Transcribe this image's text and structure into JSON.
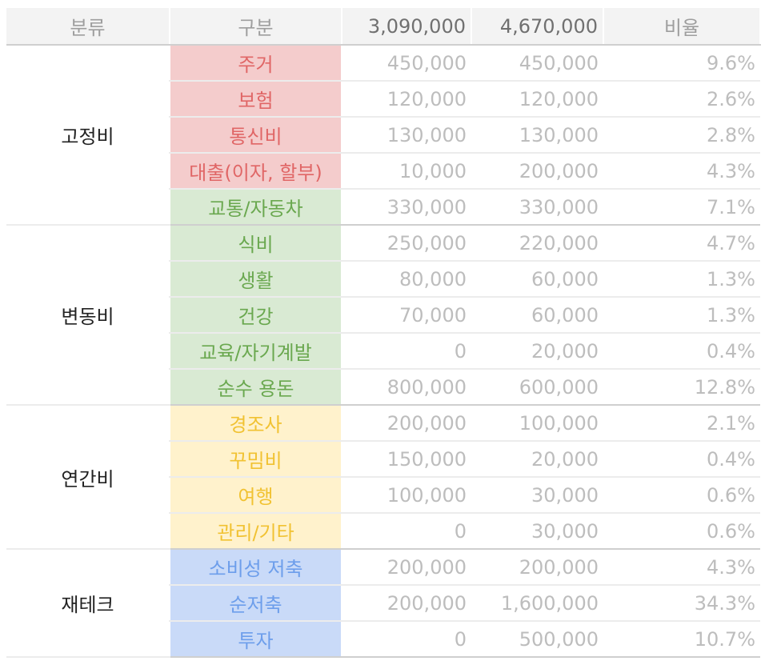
{
  "header": {
    "col_category": "분류",
    "col_item": "구분",
    "col_budget_a": "3,090,000",
    "col_budget_b": "4,670,000",
    "col_ratio": "비율"
  },
  "colors": {
    "red_bg": "#f4cccc",
    "red_text": "#e06666",
    "green_bg": "#d9ead3",
    "green_text": "#6aa84f",
    "yellow_bg": "#fff2cc",
    "yellow_text": "#f1c232",
    "blue_bg": "#c9daf8",
    "blue_text": "#6d9eeb"
  },
  "groups": [
    {
      "category": "고정비",
      "rows": [
        {
          "item": "주거",
          "a": "450,000",
          "b": "450,000",
          "ratio": "9.6%",
          "color": "red"
        },
        {
          "item": "보험",
          "a": "120,000",
          "b": "120,000",
          "ratio": "2.6%",
          "color": "red"
        },
        {
          "item": "통신비",
          "a": "130,000",
          "b": "130,000",
          "ratio": "2.8%",
          "color": "red"
        },
        {
          "item": "대출(이자, 할부)",
          "a": "10,000",
          "b": "200,000",
          "ratio": "4.3%",
          "color": "red"
        },
        {
          "item": "교통/자동차",
          "a": "330,000",
          "b": "330,000",
          "ratio": "7.1%",
          "color": "green"
        }
      ]
    },
    {
      "category": "변동비",
      "rows": [
        {
          "item": "식비",
          "a": "250,000",
          "b": "220,000",
          "ratio": "4.7%",
          "color": "green"
        },
        {
          "item": "생활",
          "a": "80,000",
          "b": "60,000",
          "ratio": "1.3%",
          "color": "green"
        },
        {
          "item": "건강",
          "a": "70,000",
          "b": "60,000",
          "ratio": "1.3%",
          "color": "green"
        },
        {
          "item": "교육/자기계발",
          "a": "0",
          "b": "20,000",
          "ratio": "0.4%",
          "color": "green"
        },
        {
          "item": "순수 용돈",
          "a": "800,000",
          "b": "600,000",
          "ratio": "12.8%",
          "color": "green"
        }
      ]
    },
    {
      "category": "연간비",
      "rows": [
        {
          "item": "경조사",
          "a": "200,000",
          "b": "100,000",
          "ratio": "2.1%",
          "color": "yellow"
        },
        {
          "item": "꾸밈비",
          "a": "150,000",
          "b": "20,000",
          "ratio": "0.4%",
          "color": "yellow"
        },
        {
          "item": "여행",
          "a": "100,000",
          "b": "30,000",
          "ratio": "0.6%",
          "color": "yellow"
        },
        {
          "item": "관리/기타",
          "a": "0",
          "b": "30,000",
          "ratio": "0.6%",
          "color": "yellow"
        }
      ]
    },
    {
      "category": "재테크",
      "rows": [
        {
          "item": "소비성 저축",
          "a": "200,000",
          "b": "200,000",
          "ratio": "4.3%",
          "color": "blue"
        },
        {
          "item": "순저축",
          "a": "200,000",
          "b": "1,600,000",
          "ratio": "34.3%",
          "color": "blue"
        },
        {
          "item": "투자",
          "a": "0",
          "b": "500,000",
          "ratio": "10.7%",
          "color": "blue"
        }
      ]
    }
  ]
}
